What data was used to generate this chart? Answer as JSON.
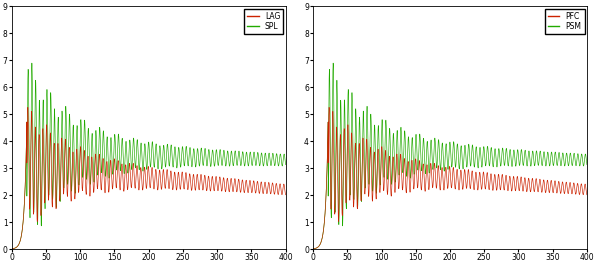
{
  "legend_left": [
    "LAG",
    "SPL"
  ],
  "legend_right": [
    "PFC",
    "PSM"
  ],
  "line_color_red": "#cc2200",
  "line_color_green": "#22aa00",
  "xlim": [
    0,
    400
  ],
  "ylim": [
    0,
    9
  ],
  "xticks": [
    0,
    50,
    100,
    150,
    200,
    250,
    300,
    350,
    400
  ],
  "yticks": [
    0,
    1,
    2,
    3,
    4,
    5,
    6,
    7,
    8,
    9
  ],
  "bg_color": "#ffffff",
  "linewidth": 0.45
}
